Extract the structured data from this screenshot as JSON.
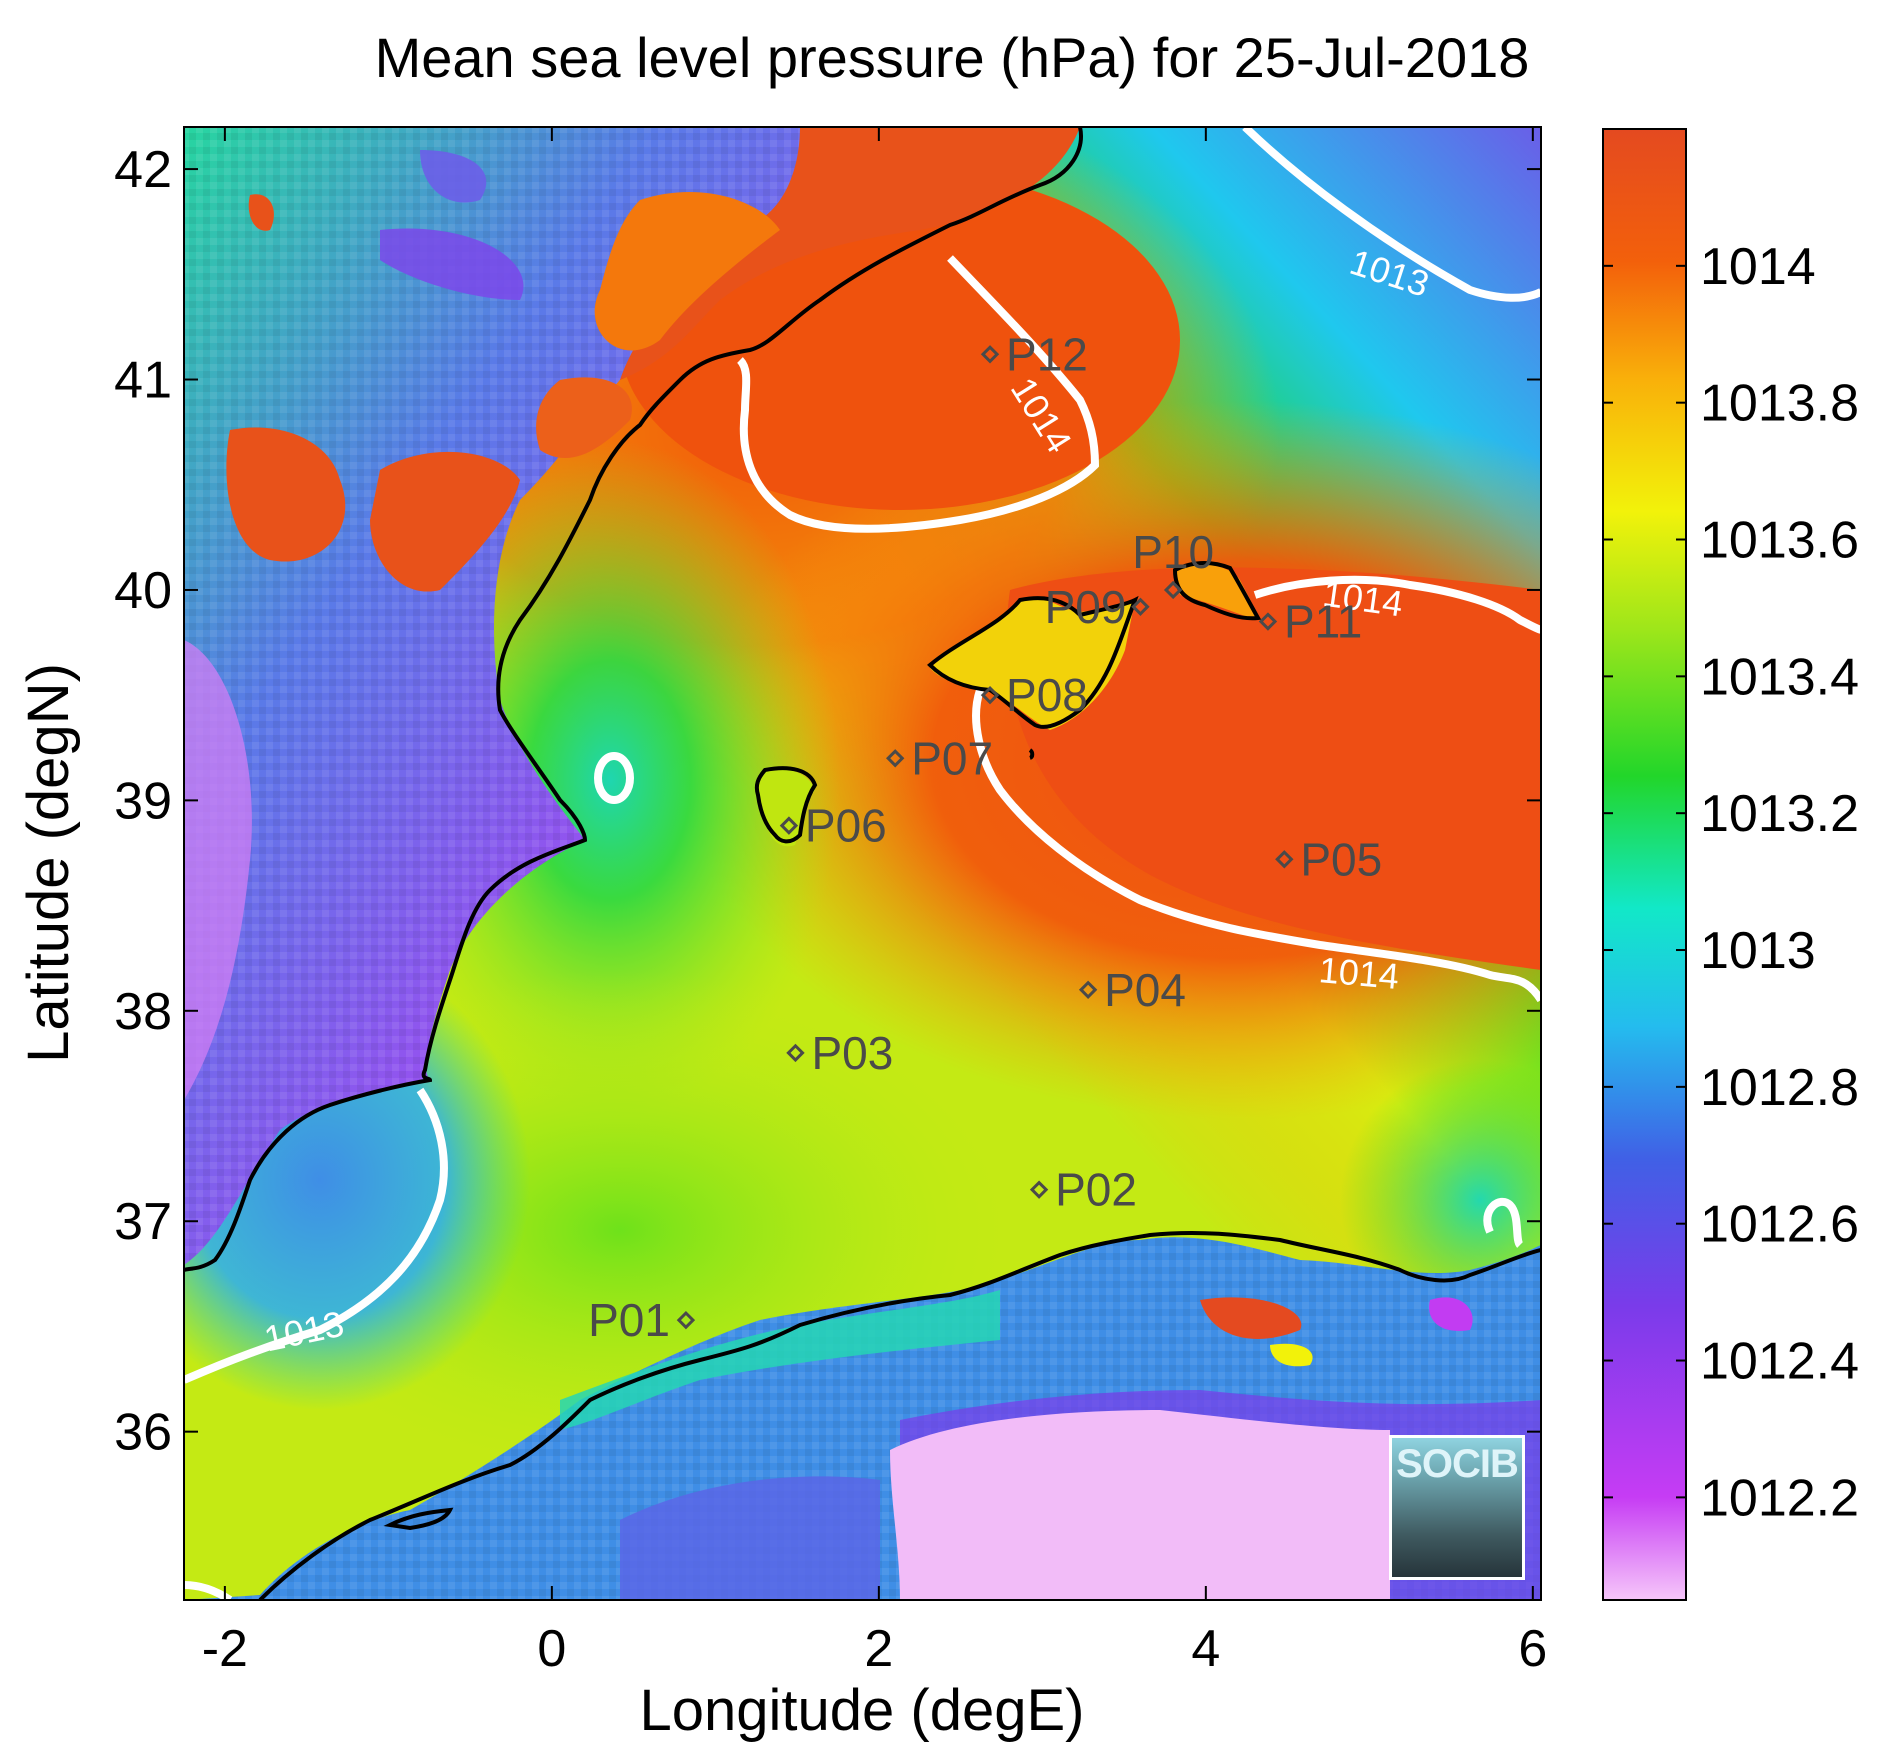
{
  "title": "Mean sea level pressure (hPa) for 25-Jul-2018",
  "axes": {
    "xlabel": "Longitude (degE)",
    "ylabel": "Latitude (degN)",
    "xlim": [
      -2.25,
      6.05
    ],
    "ylim": [
      35.2,
      42.2
    ],
    "xticks": [
      {
        "value": -2,
        "label": "-2"
      },
      {
        "value": 0,
        "label": "0"
      },
      {
        "value": 2,
        "label": "2"
      },
      {
        "value": 4,
        "label": "4"
      },
      {
        "value": 6,
        "label": "6"
      }
    ],
    "yticks": [
      {
        "value": 36,
        "label": "36"
      },
      {
        "value": 37,
        "label": "37"
      },
      {
        "value": 38,
        "label": "38"
      },
      {
        "value": 39,
        "label": "39"
      },
      {
        "value": 40,
        "label": "40"
      },
      {
        "value": 41,
        "label": "41"
      },
      {
        "value": 42,
        "label": "42"
      }
    ]
  },
  "colorbar": {
    "min": 1012.05,
    "max": 1014.2,
    "ticks": [
      {
        "value": 1012.2,
        "label": "1012.2"
      },
      {
        "value": 1012.4,
        "label": "1012.4"
      },
      {
        "value": 1012.6,
        "label": "1012.6"
      },
      {
        "value": 1012.8,
        "label": "1012.8"
      },
      {
        "value": 1013,
        "label": "1013"
      },
      {
        "value": 1013.2,
        "label": "1013.2"
      },
      {
        "value": 1013.4,
        "label": "1013.4"
      },
      {
        "value": 1013.6,
        "label": "1013.6"
      },
      {
        "value": 1013.8,
        "label": "1013.8"
      },
      {
        "value": 1014,
        "label": "1014"
      }
    ],
    "colormap": [
      "#f2b8f8",
      "#c23cf2",
      "#7a3bea",
      "#3f6ee6",
      "#1fc8ee",
      "#10e6b0",
      "#22d62a",
      "#9ee61a",
      "#f2f20a",
      "#f9b60a",
      "#f35c0b",
      "#e64a1f"
    ]
  },
  "chart_data": {
    "type": "heatmap",
    "variable": "Mean sea level pressure",
    "units": "hPa",
    "date": "25-Jul-2018",
    "stations": [
      {
        "name": "P01",
        "lon": 0.82,
        "lat": 36.53
      },
      {
        "name": "P02",
        "lon": 2.98,
        "lat": 37.15
      },
      {
        "name": "P03",
        "lon": 1.49,
        "lat": 37.8
      },
      {
        "name": "P04",
        "lon": 3.28,
        "lat": 38.1
      },
      {
        "name": "P05",
        "lon": 4.48,
        "lat": 38.72
      },
      {
        "name": "P06",
        "lon": 1.45,
        "lat": 38.88
      },
      {
        "name": "P07",
        "lon": 2.1,
        "lat": 39.2
      },
      {
        "name": "P08",
        "lon": 2.68,
        "lat": 39.5
      },
      {
        "name": "P09",
        "lon": 3.6,
        "lat": 39.92
      },
      {
        "name": "P10",
        "lon": 3.8,
        "lat": 40.0
      },
      {
        "name": "P11",
        "lon": 4.38,
        "lat": 39.85
      },
      {
        "name": "P12",
        "lon": 2.68,
        "lat": 41.12
      }
    ],
    "contours": [
      {
        "level": 1013,
        "label": "1013"
      },
      {
        "level": 1014,
        "label": "1014"
      }
    ],
    "contour_labels": [
      {
        "text": "1013",
        "lon": 5.1,
        "lat": 41.45,
        "angle": 18
      },
      {
        "text": "1014",
        "lon": 2.93,
        "lat": 40.8,
        "angle": 58
      },
      {
        "text": "1014",
        "lon": 4.95,
        "lat": 39.9,
        "angle": 8
      },
      {
        "text": "1014",
        "lon": 4.93,
        "lat": 38.12,
        "angle": 5
      },
      {
        "text": "1013",
        "lon": -1.5,
        "lat": 36.42,
        "angle": -12
      }
    ]
  },
  "logo": {
    "text": "SOCIB"
  }
}
